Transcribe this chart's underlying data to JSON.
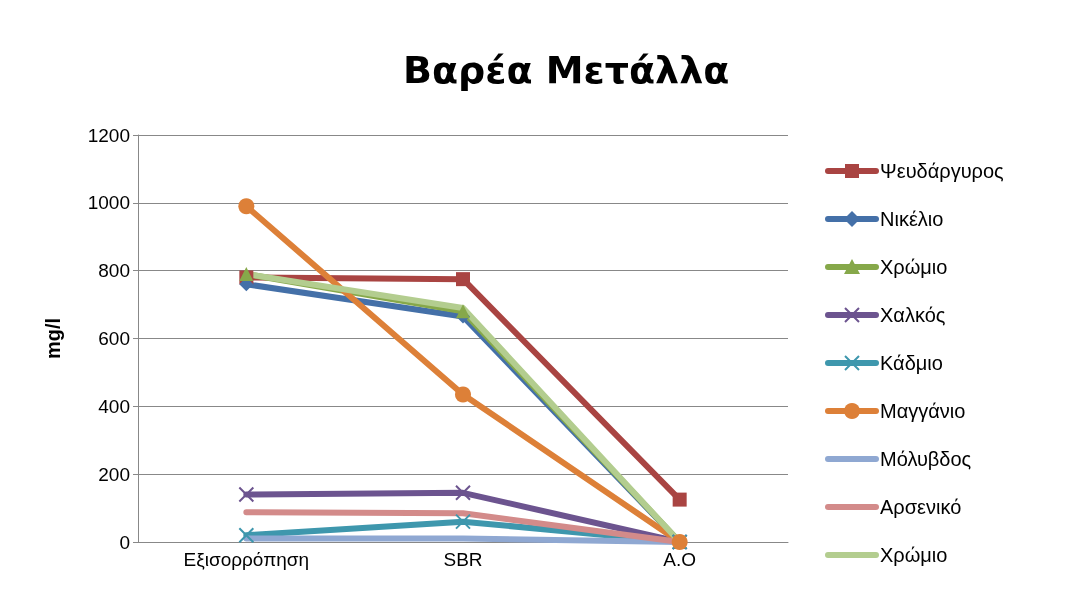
{
  "chart_data": {
    "type": "line",
    "title": "Βαρέα Μετάλλα",
    "ylabel": "mg/l",
    "categories": [
      "Εξισορρόπηση",
      "SBR",
      "A.O"
    ],
    "ylim": [
      0,
      1200
    ],
    "yticks": [
      0,
      200,
      400,
      600,
      800,
      1000,
      1200
    ],
    "grid": "y",
    "legend": "right",
    "series": [
      {
        "name": "Ψευδάργυρος",
        "color": "#a94442",
        "marker": "square",
        "values": [
          780,
          775,
          125
        ]
      },
      {
        "name": "Νικέλιο",
        "color": "#4470a8",
        "marker": "diamond",
        "values": [
          760,
          665,
          0
        ]
      },
      {
        "name": "Χρώμιο",
        "color": "#86a84a",
        "marker": "triangle",
        "values": [
          790,
          680,
          0
        ]
      },
      {
        "name": "Χαλκός",
        "color": "#6c548f",
        "marker": "cross",
        "values": [
          140,
          145,
          0
        ]
      },
      {
        "name": "Κάδμιο",
        "color": "#3e97ad",
        "marker": "cross",
        "values": [
          20,
          60,
          0
        ]
      },
      {
        "name": "Μαγγάνιο",
        "color": "#dd8038",
        "marker": "circle",
        "values": [
          990,
          435,
          0
        ]
      },
      {
        "name": "Μόλυβδος",
        "color": "#8fa8d2",
        "marker": "none",
        "values": [
          10,
          10,
          0
        ]
      },
      {
        "name": "Αρσενικό",
        "color": "#d38b8a",
        "marker": "none",
        "values": [
          88,
          85,
          0
        ]
      },
      {
        "name": "Χρώμιο",
        "color": "#b3cd8f",
        "marker": "none",
        "values": [
          790,
          690,
          0
        ]
      }
    ]
  }
}
